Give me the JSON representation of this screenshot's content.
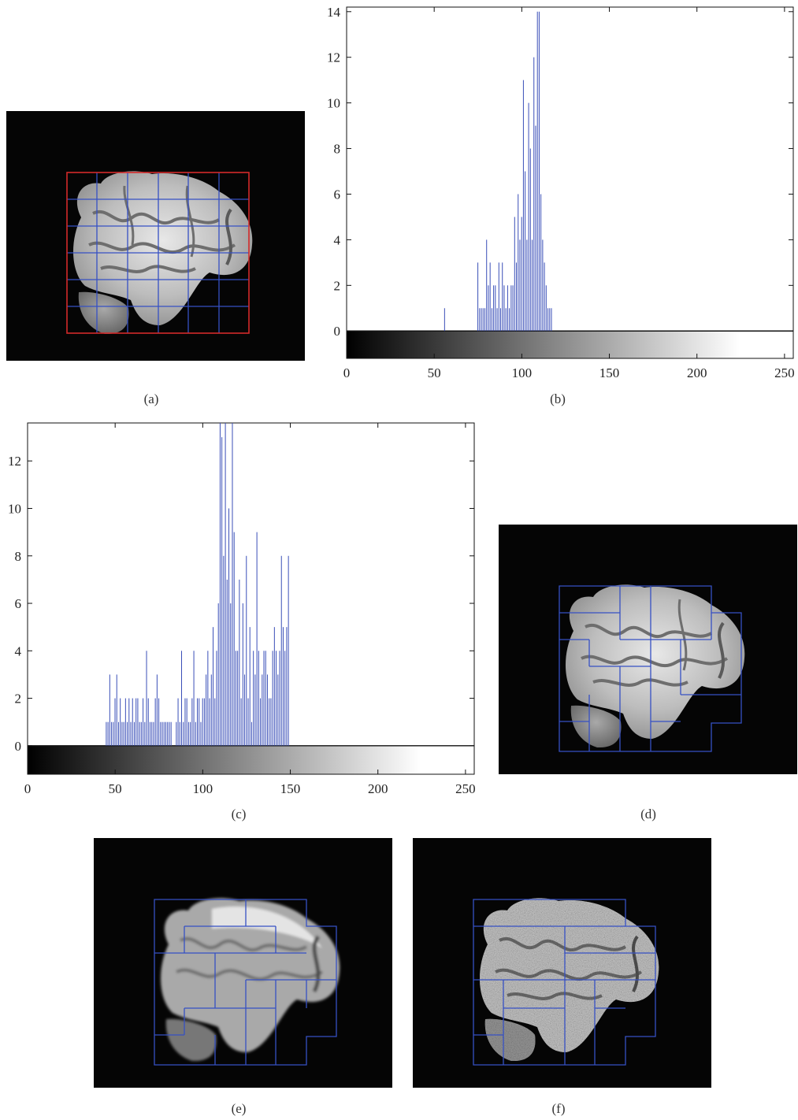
{
  "captions": {
    "a": "(a)",
    "b": "(b)",
    "c": "(c)",
    "d": "(d)",
    "e": "(e)",
    "f": "(f)"
  },
  "colors": {
    "bar": "#3a4fb8",
    "grid_red": "#d42a2a",
    "grid_blue": "#3650c4",
    "axis": "#111111"
  },
  "chart_data": [
    {
      "id": "b",
      "type": "bar",
      "xlim": [
        0,
        255
      ],
      "ylim": [
        -1.2,
        14.2
      ],
      "xticks": [
        0,
        50,
        100,
        150,
        200,
        250
      ],
      "yticks": [
        0,
        2,
        4,
        6,
        8,
        10,
        12,
        14
      ],
      "colorbar": "grayscale 0-255",
      "x": [
        56,
        75,
        76,
        77,
        78,
        79,
        80,
        81,
        82,
        83,
        84,
        85,
        86,
        87,
        88,
        89,
        90,
        91,
        92,
        93,
        94,
        95,
        96,
        97,
        98,
        99,
        100,
        101,
        102,
        103,
        104,
        105,
        106,
        107,
        108,
        109,
        110,
        111,
        112,
        113,
        114,
        115,
        116,
        117,
        118
      ],
      "values": [
        1,
        3,
        1,
        1,
        1,
        1,
        4,
        2,
        3,
        1,
        2,
        2,
        1,
        3,
        1,
        3,
        2,
        1,
        2,
        1,
        2,
        2,
        5,
        3,
        6,
        4,
        5,
        11,
        7,
        4,
        10,
        8,
        4,
        12,
        9,
        14,
        14,
        6,
        4,
        3,
        2,
        1,
        1,
        1,
        0
      ]
    },
    {
      "id": "c",
      "type": "bar",
      "xlim": [
        0,
        255
      ],
      "ylim": [
        -1.2,
        13.6
      ],
      "xticks": [
        0,
        50,
        100,
        150,
        200,
        250
      ],
      "yticks": [
        0,
        2,
        4,
        6,
        8,
        10,
        12
      ],
      "colorbar": "grayscale 0-255",
      "x": [
        45,
        46,
        47,
        48,
        49,
        50,
        51,
        52,
        53,
        54,
        55,
        56,
        57,
        58,
        59,
        60,
        61,
        62,
        63,
        64,
        65,
        66,
        67,
        68,
        69,
        70,
        71,
        72,
        73,
        74,
        75,
        76,
        77,
        78,
        79,
        80,
        81,
        82,
        83,
        84,
        85,
        86,
        87,
        88,
        89,
        90,
        91,
        92,
        93,
        94,
        95,
        96,
        97,
        98,
        99,
        100,
        101,
        102,
        103,
        104,
        105,
        106,
        107,
        108,
        109,
        110,
        111,
        112,
        113,
        114,
        115,
        116,
        117,
        118,
        119,
        120,
        121,
        122,
        123,
        124,
        125,
        126,
        127,
        128,
        129,
        130,
        131,
        132,
        133,
        134,
        135,
        136,
        137,
        138,
        139,
        140,
        141,
        142,
        143,
        144,
        145,
        146,
        147,
        148,
        149
      ],
      "values": [
        1,
        1,
        3,
        1,
        1,
        2,
        3,
        1,
        2,
        1,
        1,
        2,
        1,
        2,
        1,
        2,
        1,
        2,
        2,
        1,
        1,
        2,
        1,
        4,
        2,
        1,
        1,
        1,
        2,
        3,
        2,
        1,
        1,
        1,
        1,
        1,
        1,
        1,
        0,
        0,
        1,
        2,
        1,
        4,
        1,
        2,
        2,
        1,
        1,
        2,
        4,
        1,
        2,
        2,
        1,
        2,
        2,
        3,
        4,
        2,
        3,
        5,
        2,
        4,
        6,
        14,
        13,
        8,
        14,
        7,
        10,
        6,
        14,
        9,
        4,
        4,
        7,
        2,
        6,
        3,
        8,
        2,
        5,
        1,
        4,
        3,
        9,
        4,
        2,
        3,
        4,
        4,
        3,
        2,
        2,
        4,
        5,
        4,
        3,
        4,
        8,
        5,
        4,
        5,
        8
      ]
    }
  ]
}
